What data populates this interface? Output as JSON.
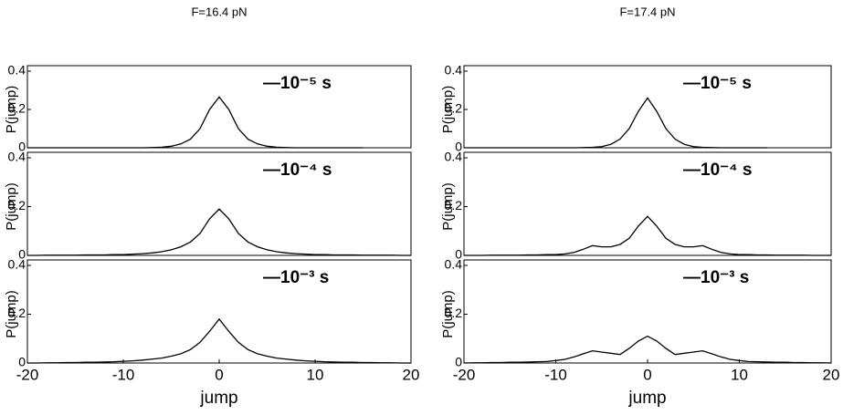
{
  "chart_data": [
    {
      "type": "line",
      "title": "F=16.4 pN",
      "ylabel": "P(jump)",
      "x": [
        -20,
        -19,
        -18,
        -17,
        -16,
        -15,
        -14,
        -13,
        -12,
        -11,
        -10,
        -9,
        -8,
        -7,
        -6,
        -5,
        -4,
        -3,
        -2,
        -1,
        0,
        1,
        2,
        3,
        4,
        5,
        6,
        7,
        8,
        9,
        10,
        11,
        12,
        13,
        14,
        15,
        16,
        17,
        18,
        19,
        20
      ],
      "series": [
        {
          "name": "—10⁻⁵ s",
          "color": "#000000",
          "values": [
            0,
            0,
            0,
            0,
            0,
            0,
            0,
            0,
            0,
            0,
            0,
            0,
            0,
            0.001,
            0.003,
            0.008,
            0.02,
            0.045,
            0.1,
            0.2,
            0.265,
            0.2,
            0.1,
            0.045,
            0.02,
            0.008,
            0.003,
            0.001,
            0,
            0,
            0,
            0,
            0,
            0,
            0,
            0,
            null,
            null,
            null,
            null,
            null
          ]
        }
      ],
      "xlim": [
        -20,
        20
      ],
      "ylim": [
        0,
        0.4
      ],
      "yticks": [
        0,
        0.2,
        0.4
      ]
    },
    {
      "type": "line",
      "ylabel": "P(jump)",
      "x": [
        -20,
        -19,
        -18,
        -17,
        -16,
        -15,
        -14,
        -13,
        -12,
        -11,
        -10,
        -9,
        -8,
        -7,
        -6,
        -5,
        -4,
        -3,
        -2,
        -1,
        0,
        1,
        2,
        3,
        4,
        5,
        6,
        7,
        8,
        9,
        10,
        11,
        12,
        13,
        14,
        15,
        16,
        17,
        18,
        19,
        20
      ],
      "series": [
        {
          "name": "—10⁻⁴ s",
          "color": "#000000",
          "values": [
            0,
            0,
            0.001,
            0.001,
            0.001,
            0.001,
            0.002,
            0.002,
            0.002,
            0.003,
            0.003,
            0.005,
            0.007,
            0.01,
            0.015,
            0.023,
            0.035,
            0.055,
            0.09,
            0.15,
            0.19,
            0.15,
            0.09,
            0.055,
            0.035,
            0.023,
            0.015,
            0.01,
            0.007,
            0.005,
            0.003,
            0.003,
            0.002,
            0.002,
            0.002,
            0.001,
            0.001,
            0.001,
            0.001,
            0,
            0
          ]
        }
      ],
      "xlim": [
        -20,
        20
      ],
      "ylim": [
        0,
        0.4
      ],
      "yticks": [
        0,
        0.2,
        0.4
      ]
    },
    {
      "type": "line",
      "ylabel": "P(jump)",
      "xlabel": "jump",
      "x": [
        -20,
        -19,
        -18,
        -17,
        -16,
        -15,
        -14,
        -13,
        -12,
        -11,
        -10,
        -9,
        -8,
        -7,
        -6,
        -5,
        -4,
        -3,
        -2,
        -1,
        0,
        1,
        2,
        3,
        4,
        5,
        6,
        7,
        8,
        9,
        10,
        11,
        12,
        13,
        14,
        15,
        16,
        17,
        18,
        19,
        20
      ],
      "series": [
        {
          "name": "—10⁻³ s",
          "color": "#000000",
          "values": [
            0,
            0,
            0.001,
            0.001,
            0.002,
            0.002,
            0.003,
            0.003,
            0.004,
            0.005,
            0.007,
            0.009,
            0.012,
            0.016,
            0.02,
            0.028,
            0.038,
            0.055,
            0.085,
            0.13,
            0.18,
            0.13,
            0.085,
            0.055,
            0.038,
            0.028,
            0.02,
            0.016,
            0.012,
            0.009,
            0.007,
            0.005,
            0.004,
            0.003,
            0.003,
            0.002,
            0.002,
            0.001,
            0.001,
            0,
            0
          ]
        }
      ],
      "xlim": [
        -20,
        20
      ],
      "ylim": [
        0,
        0.4
      ],
      "xticks": [
        -20,
        -10,
        0,
        10,
        20
      ],
      "yticks": [
        0,
        0.2,
        0.4
      ]
    },
    {
      "type": "line",
      "title": "F=17.4 pN",
      "ylabel": "P(jump)",
      "x": [
        -20,
        -19,
        -18,
        -17,
        -16,
        -15,
        -14,
        -13,
        -12,
        -11,
        -10,
        -9,
        -8,
        -7,
        -6,
        -5,
        -4,
        -3,
        -2,
        -1,
        0,
        1,
        2,
        3,
        4,
        5,
        6,
        7,
        8,
        9,
        10,
        11,
        12,
        13,
        14,
        15,
        16,
        17,
        18,
        19,
        20
      ],
      "series": [
        {
          "name": "—10⁻⁵ s",
          "color": "#000000",
          "values": [
            0,
            0,
            0,
            0,
            0,
            0,
            0,
            0,
            0,
            0,
            0,
            0,
            0,
            0.001,
            0.002,
            0.006,
            0.018,
            0.045,
            0.1,
            0.19,
            0.26,
            0.19,
            0.1,
            0.045,
            0.018,
            0.006,
            0.002,
            0.001,
            0,
            0,
            0,
            0,
            0,
            0,
            null,
            null,
            null,
            null,
            null,
            null,
            null
          ]
        }
      ],
      "xlim": [
        -20,
        20
      ],
      "ylim": [
        0,
        0.4
      ],
      "yticks": [
        0,
        0.2,
        0.4
      ]
    },
    {
      "type": "line",
      "ylabel": "P(jump)",
      "x": [
        -20,
        -19,
        -18,
        -17,
        -16,
        -15,
        -14,
        -13,
        -12,
        -11,
        -10,
        -9,
        -8,
        -7,
        -6,
        -5,
        -4,
        -3,
        -2,
        -1,
        0,
        1,
        2,
        3,
        4,
        5,
        6,
        7,
        8,
        9,
        10,
        11,
        12,
        13,
        14,
        15,
        16,
        17,
        18,
        19,
        20
      ],
      "series": [
        {
          "name": "—10⁻⁴ s",
          "color": "#000000",
          "values": [
            0,
            0,
            0,
            0.001,
            0.001,
            0.001,
            0.001,
            0.002,
            0.002,
            0.003,
            0.003,
            0.006,
            0.012,
            0.025,
            0.04,
            0.035,
            0.035,
            0.045,
            0.07,
            0.12,
            0.16,
            0.12,
            0.07,
            0.045,
            0.035,
            0.035,
            0.04,
            0.025,
            0.012,
            0.006,
            0.003,
            0.003,
            0.002,
            0.002,
            0.001,
            0.001,
            0.001,
            0.001,
            0,
            0,
            0
          ]
        }
      ],
      "xlim": [
        -20,
        20
      ],
      "ylim": [
        0,
        0.4
      ],
      "yticks": [
        0,
        0.2,
        0.4
      ]
    },
    {
      "type": "line",
      "ylabel": "P(jump)",
      "xlabel": "jump",
      "x": [
        -20,
        -19,
        -18,
        -17,
        -16,
        -15,
        -14,
        -13,
        -12,
        -11,
        -10,
        -9,
        -8,
        -7,
        -6,
        -5,
        -4,
        -3,
        -2,
        -1,
        0,
        1,
        2,
        3,
        4,
        5,
        6,
        7,
        8,
        9,
        10,
        11,
        12,
        13,
        14,
        15,
        16,
        17,
        18,
        19,
        20
      ],
      "series": [
        {
          "name": "—10⁻³ s",
          "color": "#000000",
          "values": [
            0,
            0.001,
            0.001,
            0.002,
            0.002,
            0.003,
            0.003,
            0.004,
            0.005,
            0.006,
            0.01,
            0.015,
            0.025,
            0.038,
            0.05,
            0.045,
            0.04,
            0.035,
            0.06,
            0.09,
            0.11,
            0.09,
            0.06,
            0.035,
            0.04,
            0.045,
            0.05,
            0.038,
            0.025,
            0.015,
            0.01,
            0.006,
            0.005,
            0.004,
            0.003,
            0.003,
            0.002,
            0.002,
            0.001,
            0.001,
            0
          ]
        }
      ],
      "xlim": [
        -20,
        20
      ],
      "ylim": [
        0,
        0.4
      ],
      "xticks": [
        -20,
        -10,
        0,
        10,
        20
      ],
      "yticks": [
        0,
        0.2,
        0.4
      ]
    }
  ]
}
